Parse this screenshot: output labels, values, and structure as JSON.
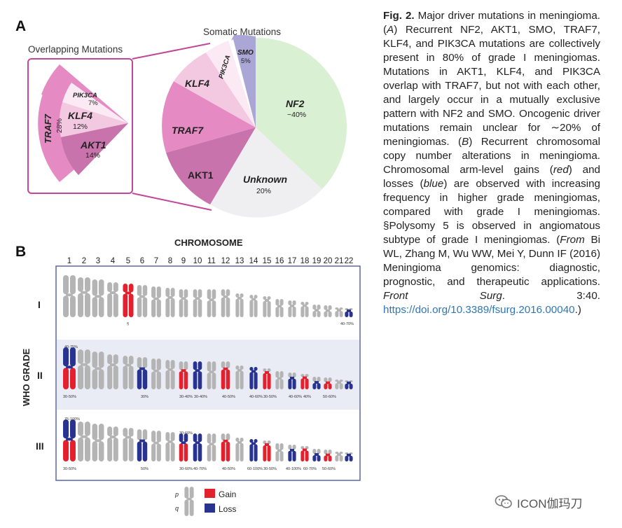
{
  "panel_a": {
    "label": "A",
    "overlapping_title": "Overlapping Mutations",
    "somatic_title": "Somatic Mutations",
    "overlap_segments": [
      {
        "name": "TRAF7",
        "pct": "28%"
      },
      {
        "name": "PIK3CA",
        "pct": "7%"
      },
      {
        "name": "KLF4",
        "pct": "12%"
      },
      {
        "name": "AKT1",
        "pct": "14%"
      }
    ],
    "pie_labels": {
      "smo": "SMO",
      "smo_pct": "5%",
      "pik3ca": "PIK3CA",
      "klf4": "KLF4",
      "traf7": "TRAF7",
      "akt1": "AKT1",
      "nf2": "NF2",
      "nf2_pct": "~40%",
      "unknown": "Unknown",
      "unknown_pct": "20%"
    },
    "colors": {
      "nf2": "#d9f0d3",
      "unknown": "#efeff1",
      "smo": "#aaa6d6",
      "pik3ca": "#fbeaf3",
      "klf4": "#f3c9e1",
      "traf7": "#e68ac3",
      "akt1": "#c873ab",
      "box": "#c2469a"
    }
  },
  "panel_b": {
    "label": "B",
    "top_title": "CHROMOSOME",
    "side_title": "WHO GRADE",
    "chromosome_numbers": [
      "1",
      "2",
      "3",
      "4",
      "5",
      "6",
      "7",
      "8",
      "9",
      "10",
      "11",
      "12",
      "13",
      "14",
      "15",
      "16",
      "17",
      "18",
      "19",
      "20",
      "21",
      "22"
    ],
    "grades": [
      "I",
      "II",
      "III"
    ],
    "grade_i_notes": [
      "§",
      "40-70%"
    ],
    "grade_ii_notes": [
      "40-75%",
      "30-50%",
      "30%",
      "30-40%",
      "30-40%",
      "40-50%",
      "40-60%",
      "30-50%",
      "40-60%",
      "40%",
      "50-60%"
    ],
    "grade_iii_notes": [
      "75-100%",
      "30-50%",
      "50%",
      "30-60%",
      "30-60%",
      "40-70%",
      "40-50%",
      "60-100%",
      "30-50%",
      "40-100%",
      "60-70%",
      "50-60%"
    ],
    "legend": {
      "p": "p",
      "q": "q",
      "gain": "Gain",
      "loss": "Loss"
    },
    "colors": {
      "gain": "#e3202d",
      "loss": "#27338f",
      "neutral": "#b4b4b4",
      "band": "#e9ecf5",
      "border": "#5b66a8"
    }
  },
  "caption": {
    "fig": "Fig. 2.",
    "text_1": " Major driver mutations in meningioma. (",
    "a": "A",
    "text_2": ") Recurrent NF2, AKT1, SMO, TRAF7, KLF4, and PIK3CA mutations are collectively present in 80% of grade I meningiomas. Mutations in AKT1, KLF4, and PIK3CA overlap with TRAF7, but not with each other, and largely occur in a mutually exclusive pattern with NF2 and SMO. Oncogenic driver mutations remain unclear for ∼20% of meningiomas. (",
    "b": "B",
    "text_3": ") Recurrent chromosomal copy number alterations in meningioma. Chromosomal arm-level gains (",
    "red": "red",
    "text_4": ") and losses (",
    "blue": "blue",
    "text_5": ") are observed with increasing frequency in higher grade meningiomas, compared with grade I meningiomas. §Polysomy 5 is observed in angiomatous subtype of grade I meningiomas. (",
    "from": "From",
    "text_6": " Bi WL, Zhang M, Wu WW, Mei Y, Dunn IF (2016) Meningioma genomics: diagnostic, prognostic, and therapeutic applications. ",
    "journal": "Front Surg",
    "text_7": ". 3:40. ",
    "link": "https://doi.org/10.3389/fsurg.2016.00040",
    "text_8": ".)"
  },
  "watermark": {
    "text": "ICON伽玛刀",
    "icon": "wechat-icon"
  }
}
